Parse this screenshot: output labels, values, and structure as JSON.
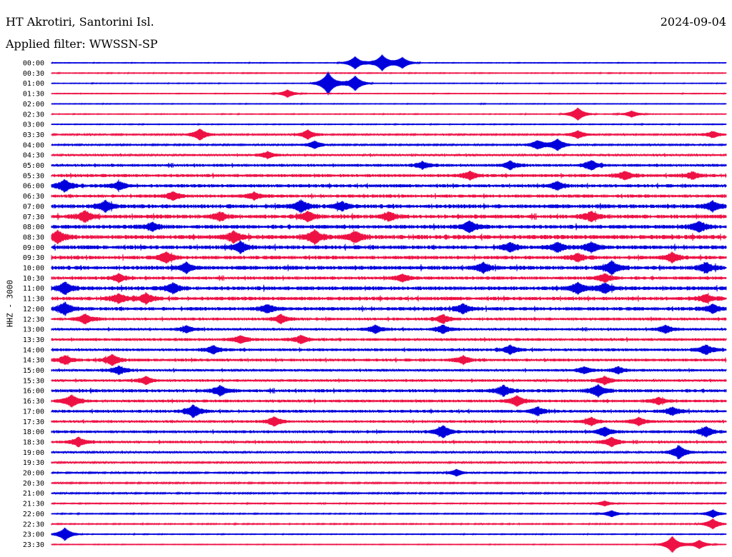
{
  "header": {
    "station": "HT Akrotiri, Santorini Isl.",
    "date": "2024-09-04",
    "filter": "Applied filter: WWSSN-SP",
    "channel": "HHZ - 3000"
  },
  "chart_data": {
    "type": "line",
    "title": "HT Akrotiri, Santorini Isl.",
    "subtitle": "Applied filter: WWSSN-SP",
    "ylabel": "HHZ - 3000",
    "grid": false,
    "colors": [
      "#0000dd",
      "#ee1144"
    ],
    "row_labels": [
      "00:00",
      "00:30",
      "01:00",
      "01:30",
      "02:00",
      "02:30",
      "03:00",
      "03:30",
      "04:00",
      "04:30",
      "05:00",
      "05:30",
      "06:00",
      "06:30",
      "07:00",
      "07:30",
      "08:00",
      "08:30",
      "09:00",
      "09:30",
      "10:00",
      "10:30",
      "11:00",
      "11:30",
      "12:00",
      "12:30",
      "13:00",
      "13:30",
      "14:00",
      "14:30",
      "15:00",
      "15:30",
      "16:00",
      "16:30",
      "17:00",
      "17:30",
      "18:00",
      "18:30",
      "19:00",
      "19:30",
      "20:00",
      "20:30",
      "21:00",
      "21:30",
      "22:00",
      "22:30",
      "23:00",
      "23:30"
    ],
    "noise_level": [
      0.1,
      0.12,
      0.1,
      0.1,
      0.1,
      0.12,
      0.12,
      0.22,
      0.22,
      0.3,
      0.4,
      0.45,
      0.45,
      0.45,
      0.55,
      0.55,
      0.55,
      0.6,
      0.55,
      0.5,
      0.55,
      0.45,
      0.55,
      0.5,
      0.5,
      0.4,
      0.35,
      0.4,
      0.4,
      0.4,
      0.35,
      0.35,
      0.45,
      0.4,
      0.4,
      0.35,
      0.4,
      0.35,
      0.3,
      0.25,
      0.2,
      0.2,
      0.2,
      0.15,
      0.15,
      0.15,
      0.12,
      0.1
    ],
    "events": [
      [
        [
          0.45,
          1.0
        ],
        [
          0.49,
          1.3
        ],
        [
          0.52,
          0.9
        ]
      ],
      [],
      [
        [
          0.41,
          1.8
        ],
        [
          0.45,
          1.2
        ]
      ],
      [
        [
          0.35,
          0.6
        ]
      ],
      [],
      [
        [
          0.78,
          1.0
        ],
        [
          0.86,
          0.5
        ]
      ],
      [],
      [
        [
          0.22,
          0.9
        ],
        [
          0.38,
          0.7
        ],
        [
          0.78,
          0.6
        ],
        [
          0.98,
          0.5
        ]
      ],
      [
        [
          0.39,
          0.6
        ],
        [
          0.72,
          0.7
        ],
        [
          0.75,
          0.9
        ]
      ],
      [
        [
          0.32,
          0.5
        ]
      ],
      [
        [
          0.55,
          0.5
        ],
        [
          0.68,
          0.6
        ],
        [
          0.8,
          0.7
        ]
      ],
      [
        [
          0.62,
          0.6
        ],
        [
          0.85,
          0.6
        ],
        [
          0.95,
          0.5
        ]
      ],
      [
        [
          0.02,
          0.9
        ],
        [
          0.1,
          0.6
        ],
        [
          0.75,
          0.6
        ]
      ],
      [
        [
          0.18,
          0.6
        ],
        [
          0.3,
          0.5
        ]
      ],
      [
        [
          0.08,
          0.8
        ],
        [
          0.37,
          0.9
        ],
        [
          0.43,
          0.6
        ],
        [
          0.98,
          0.7
        ]
      ],
      [
        [
          0.05,
          0.8
        ],
        [
          0.25,
          0.6
        ],
        [
          0.38,
          0.7
        ],
        [
          0.5,
          0.6
        ],
        [
          0.8,
          0.7
        ]
      ],
      [
        [
          0.15,
          0.6
        ],
        [
          0.62,
          0.8
        ],
        [
          0.96,
          0.8
        ]
      ],
      [
        [
          0.01,
          0.9
        ],
        [
          0.27,
          0.8
        ],
        [
          0.39,
          1.0
        ],
        [
          0.45,
          0.8
        ]
      ],
      [
        [
          0.28,
          0.8
        ],
        [
          0.68,
          0.6
        ],
        [
          0.75,
          0.7
        ],
        [
          0.8,
          0.7
        ]
      ],
      [
        [
          0.17,
          0.8
        ],
        [
          0.78,
          0.6
        ],
        [
          0.92,
          0.7
        ]
      ],
      [
        [
          0.2,
          0.7
        ],
        [
          0.64,
          0.7
        ],
        [
          0.83,
          1.0
        ],
        [
          0.97,
          0.7
        ]
      ],
      [
        [
          0.1,
          0.6
        ],
        [
          0.52,
          0.5
        ],
        [
          0.82,
          0.6
        ]
      ],
      [
        [
          0.02,
          0.9
        ],
        [
          0.18,
          0.7
        ],
        [
          0.78,
          0.8
        ],
        [
          0.82,
          0.7
        ]
      ],
      [
        [
          0.1,
          0.7
        ],
        [
          0.14,
          0.7
        ],
        [
          0.97,
          0.6
        ]
      ],
      [
        [
          0.02,
          0.9
        ],
        [
          0.32,
          0.6
        ],
        [
          0.61,
          0.7
        ],
        [
          0.98,
          0.6
        ]
      ],
      [
        [
          0.05,
          0.7
        ],
        [
          0.34,
          0.6
        ],
        [
          0.58,
          0.6
        ]
      ],
      [
        [
          0.2,
          0.5
        ],
        [
          0.48,
          0.6
        ],
        [
          0.58,
          0.6
        ],
        [
          0.91,
          0.6
        ]
      ],
      [
        [
          0.28,
          0.6
        ],
        [
          0.37,
          0.6
        ]
      ],
      [
        [
          0.24,
          0.6
        ],
        [
          0.68,
          0.6
        ],
        [
          0.97,
          0.7
        ]
      ],
      [
        [
          0.02,
          0.6
        ],
        [
          0.09,
          0.8
        ],
        [
          0.61,
          0.6
        ]
      ],
      [
        [
          0.1,
          0.6
        ],
        [
          0.79,
          0.5
        ],
        [
          0.84,
          0.5
        ]
      ],
      [
        [
          0.14,
          0.6
        ],
        [
          0.82,
          0.6
        ]
      ],
      [
        [
          0.25,
          0.7
        ],
        [
          0.67,
          0.8
        ],
        [
          0.81,
          0.9
        ]
      ],
      [
        [
          0.03,
          0.9
        ],
        [
          0.69,
          0.8
        ],
        [
          0.9,
          0.5
        ]
      ],
      [
        [
          0.21,
          0.9
        ],
        [
          0.72,
          0.6
        ],
        [
          0.92,
          0.6
        ]
      ],
      [
        [
          0.33,
          0.7
        ],
        [
          0.8,
          0.6
        ],
        [
          0.87,
          0.6
        ]
      ],
      [
        [
          0.58,
          0.9
        ],
        [
          0.82,
          0.7
        ],
        [
          0.97,
          0.7
        ]
      ],
      [
        [
          0.04,
          0.7
        ],
        [
          0.83,
          0.7
        ]
      ],
      [
        [
          0.93,
          1.0
        ]
      ],
      [],
      [
        [
          0.6,
          0.5
        ]
      ],
      [],
      [],
      [
        [
          0.82,
          0.4
        ]
      ],
      [
        [
          0.83,
          0.5
        ],
        [
          0.98,
          0.6
        ]
      ],
      [
        [
          0.98,
          0.8
        ]
      ],
      [
        [
          0.02,
          1.0
        ]
      ],
      [
        [
          0.92,
          1.3
        ],
        [
          0.96,
          0.7
        ]
      ]
    ]
  }
}
